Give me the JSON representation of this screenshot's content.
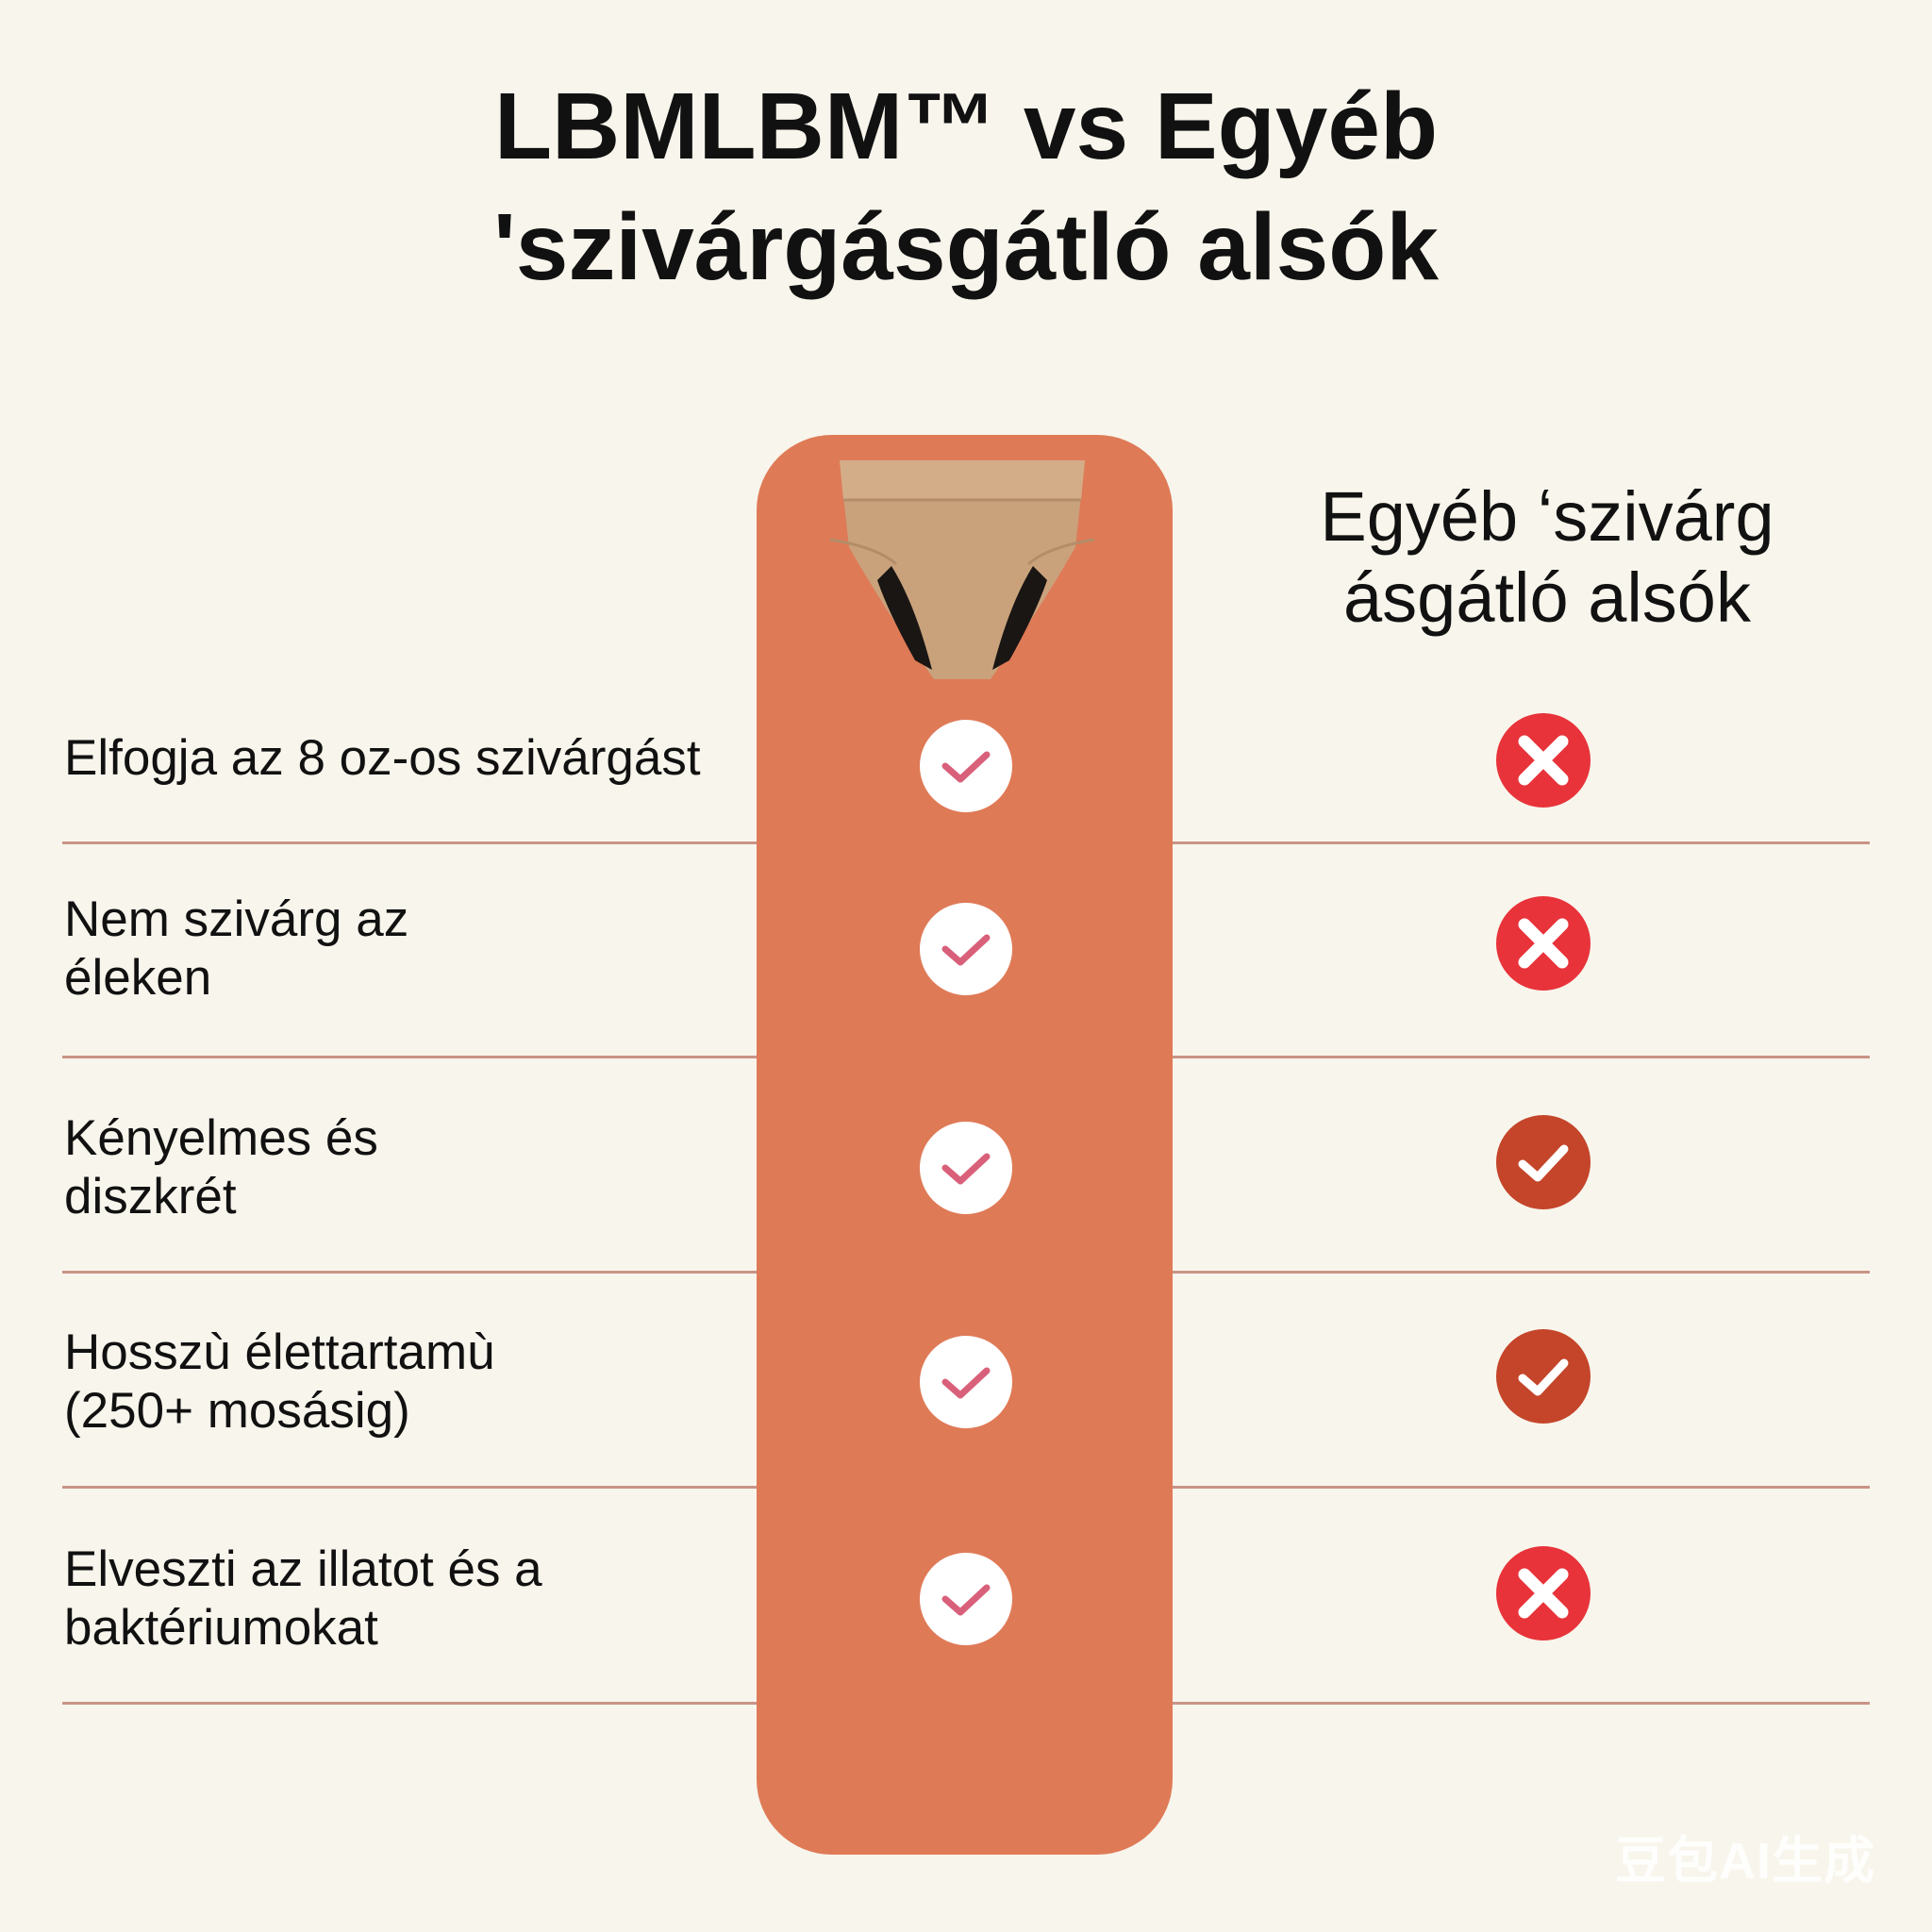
{
  "title": {
    "line1": "LBMLBM™ vs Egyéb",
    "line2": "'szivárgásgátló alsók"
  },
  "columns": {
    "other_header_line1": "Egyéb ʻszivárg",
    "other_header_line2": "ásgátló alsók"
  },
  "colors": {
    "brand_column": "#df7a57",
    "check_pink": "#d9607a",
    "cross_red": "#e8333a",
    "check_dark": "#c4452a",
    "background": "#f8f5ec"
  },
  "rows": [
    {
      "label": "Elfogja az 8 oz-os szivárgást",
      "ours": "check",
      "other": "cross"
    },
    {
      "label": "Nem szivárg az\néleken",
      "ours": "check",
      "other": "cross"
    },
    {
      "label": "Kényelmes és\ndiszkrét",
      "ours": "check",
      "other": "check"
    },
    {
      "label": "Hosszù élettartamù\n(250+ mosásig)",
      "ours": "check",
      "other": "check"
    },
    {
      "label": "Elveszti az illatot és a\nbaktériumokat",
      "ours": "check",
      "other": "cross"
    }
  ],
  "watermark": "豆包AI生成"
}
